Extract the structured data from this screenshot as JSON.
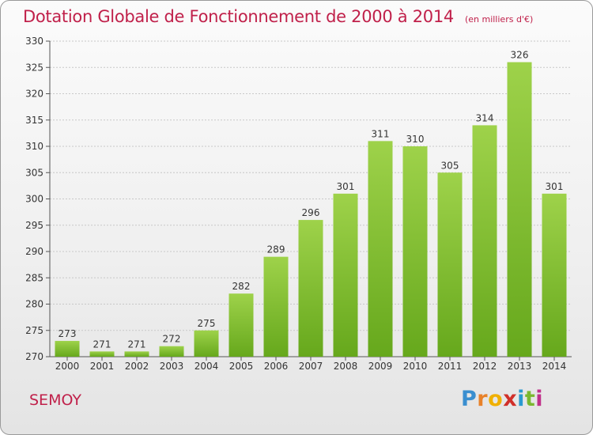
{
  "title": "Dotation Globale de Fonctionnement de 2000 à 2014",
  "unit_note": "(en milliers d'€)",
  "commune": "SEMOY",
  "logo": {
    "text": "Proxiti",
    "letter_colors": [
      "#3a8fd0",
      "#e8822a",
      "#f0b000",
      "#d0302a",
      "#2a9ad0",
      "#7ab830",
      "#c0308a"
    ]
  },
  "colors": {
    "title": "#c0204a",
    "bar_light": "#9ed24a",
    "bar_dark": "#66a81c",
    "grid": "#c8c8c8",
    "axis_text": "#333333"
  },
  "chart_data": {
    "type": "bar",
    "title": "Dotation Globale de Fonctionnement de 2000 à 2014",
    "xlabel": "",
    "ylabel": "",
    "categories": [
      "2000",
      "2001",
      "2002",
      "2003",
      "2004",
      "2005",
      "2006",
      "2007",
      "2008",
      "2009",
      "2010",
      "2011",
      "2012",
      "2013",
      "2014"
    ],
    "values": [
      273,
      271,
      271,
      272,
      275,
      282,
      289,
      296,
      301,
      311,
      310,
      305,
      314,
      326,
      301
    ],
    "ylim": [
      270,
      330
    ],
    "yticks": [
      270,
      275,
      280,
      285,
      290,
      295,
      300,
      305,
      310,
      315,
      320,
      325,
      330
    ],
    "grid": true,
    "data_labels": true
  }
}
